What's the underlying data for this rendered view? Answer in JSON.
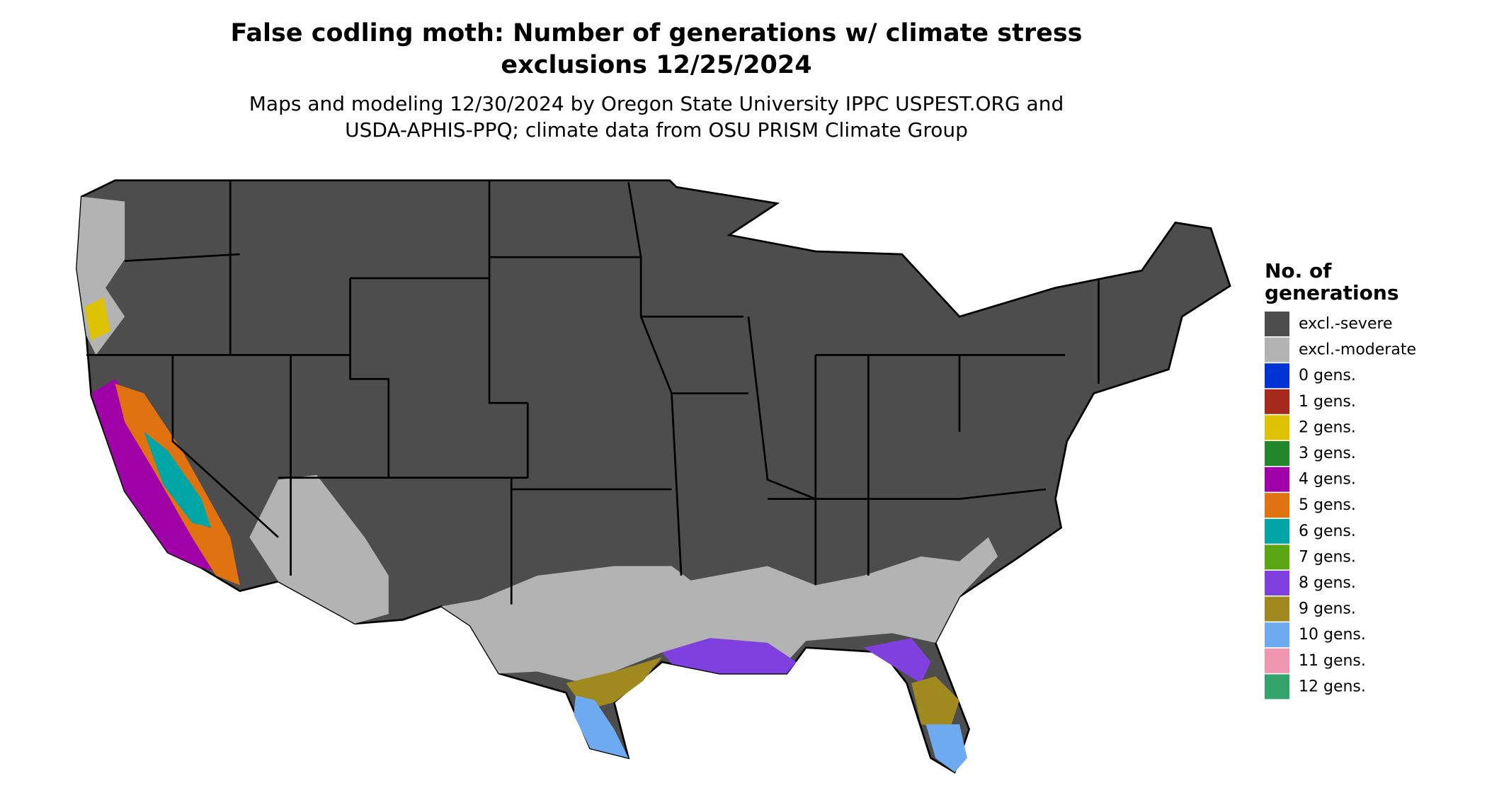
{
  "title": "False codling moth: Number of generations w/ climate stress exclusions 12/25/2024",
  "subtitle_lines": [
    "Maps and modeling 12/30/2024 by Oregon State University IPPC USPEST.ORG and",
    "USDA-APHIS-PPQ; climate data from OSU PRISM Climate Group"
  ],
  "title_lines": [
    "False codling moth: Number of generations w/ climate stress",
    "exclusions 12/25/2024"
  ],
  "legend": {
    "title_lines": [
      "No. of",
      "generations"
    ],
    "items": [
      {
        "label": "excl.-severe",
        "color": "#4d4d4d"
      },
      {
        "label": "excl.-moderate",
        "color": "#b3b3b3"
      },
      {
        "label": "0 gens.",
        "color": "#0033d6"
      },
      {
        "label": "1 gens.",
        "color": "#a52a1c"
      },
      {
        "label": "2 gens.",
        "color": "#dcc200"
      },
      {
        "label": "3 gens.",
        "color": "#22862a"
      },
      {
        "label": "4 gens.",
        "color": "#a000a8"
      },
      {
        "label": "5 gens.",
        "color": "#e07310"
      },
      {
        "label": "6 gens.",
        "color": "#00a5a5"
      },
      {
        "label": "7 gens.",
        "color": "#5ca512"
      },
      {
        "label": "8 gens.",
        "color": "#8040e0"
      },
      {
        "label": "9 gens.",
        "color": "#a08a20"
      },
      {
        "label": "10 gens.",
        "color": "#6eaaf0"
      },
      {
        "label": "11 gens.",
        "color": "#f096b0"
      },
      {
        "label": "12 gens.",
        "color": "#34a46c"
      }
    ]
  }
}
